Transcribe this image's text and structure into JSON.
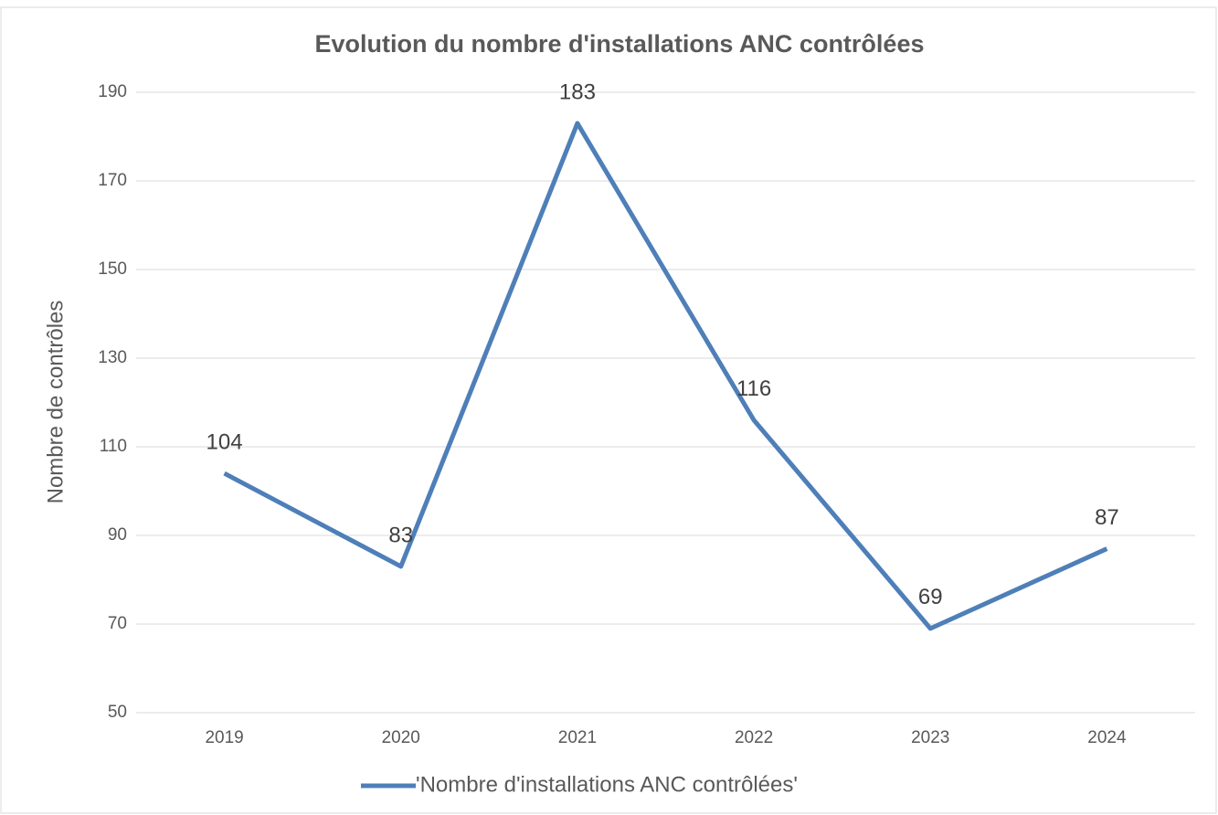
{
  "chart_data": {
    "type": "line",
    "title": "Evolution du nombre d'installations ANC contrôlées",
    "y_label": "Nombre de contrôles",
    "categories": [
      "2019",
      "2020",
      "2021",
      "2022",
      "2023",
      "2024"
    ],
    "series": [
      {
        "name": "'Nombre d'installations ANC contrôlées'",
        "color": "#4e7fb8",
        "values": [
          104,
          83,
          183,
          116,
          69,
          87
        ]
      }
    ],
    "ylim": [
      50,
      190
    ],
    "yticks": [
      50,
      70,
      90,
      110,
      130,
      150,
      170,
      190
    ],
    "grid": true,
    "legend": "bottom",
    "data_labels": true
  }
}
